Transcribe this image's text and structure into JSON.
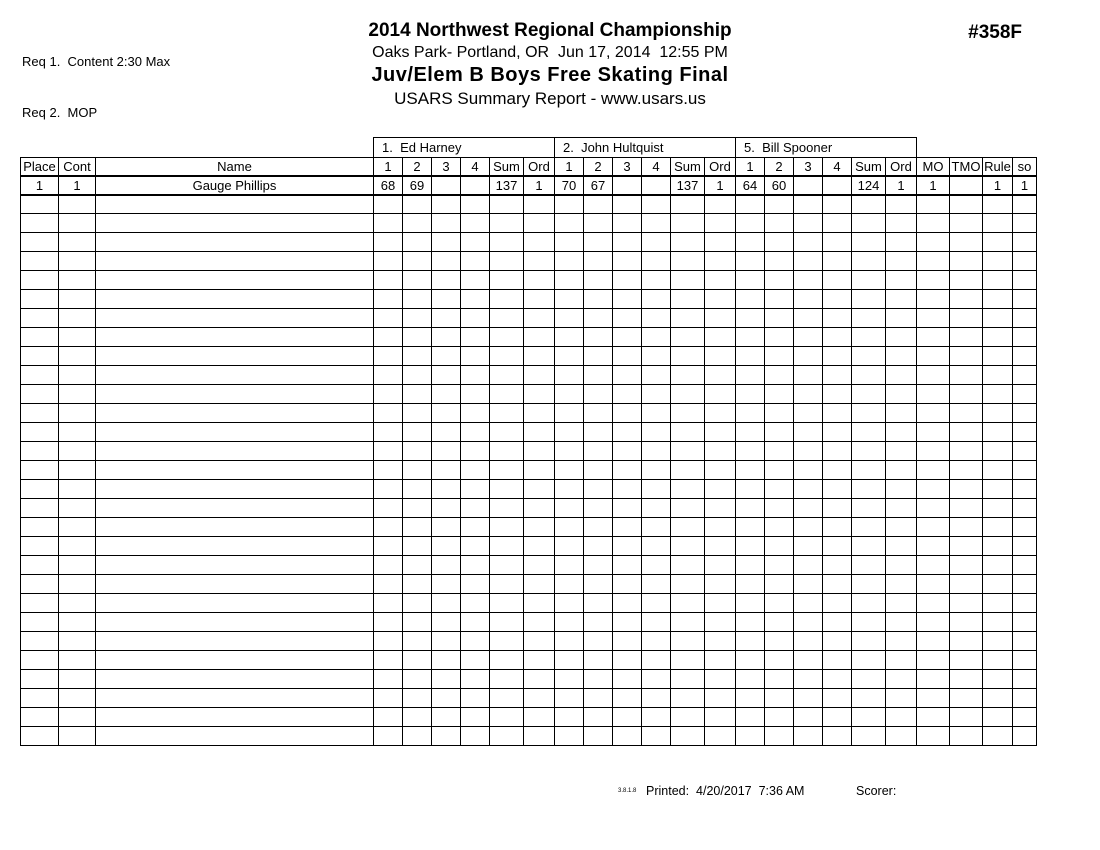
{
  "header": {
    "req_lines": [
      "Req 1.  Content 2:30 Max",
      "Req 2.  MOP"
    ],
    "title": "2014 Northwest Regional Championship",
    "venue_line": "Oaks Park- Portland, OR  Jun 17, 2014  12:55 PM",
    "event_title": "Juv/Elem B Boys Free Skating Final",
    "report_line": "USARS Summary Report - www.usars.us",
    "event_number": "#358F"
  },
  "table": {
    "judges": [
      "1.  Ed Harney",
      "2.  John Hultquist",
      "5.  Bill Spooner"
    ],
    "headers": {
      "place": "Place",
      "cont": "Cont",
      "name": "Name",
      "score_cols": [
        "1",
        "2",
        "3",
        "4",
        "Sum",
        "Ord"
      ],
      "tail": [
        "MO",
        "TMO",
        "Rule",
        "so"
      ]
    },
    "rows": [
      {
        "place": "1",
        "cont": "1",
        "name": "Gauge Phillips",
        "judges": [
          {
            "scores": [
              "68",
              "69",
              "",
              ""
            ],
            "sum": "137",
            "ord": "1"
          },
          {
            "scores": [
              "70",
              "67",
              "",
              ""
            ],
            "sum": "137",
            "ord": "1"
          },
          {
            "scores": [
              "64",
              "60",
              "",
              ""
            ],
            "sum": "124",
            "ord": "1"
          }
        ],
        "mo": "1",
        "tmo": "",
        "rule": "1",
        "so": "1"
      }
    ],
    "empty_row_count": 29
  },
  "footer": {
    "version": "3.8.1.8",
    "printed": "Printed:  4/20/2017  7:36 AM",
    "scorer": "Scorer:"
  }
}
